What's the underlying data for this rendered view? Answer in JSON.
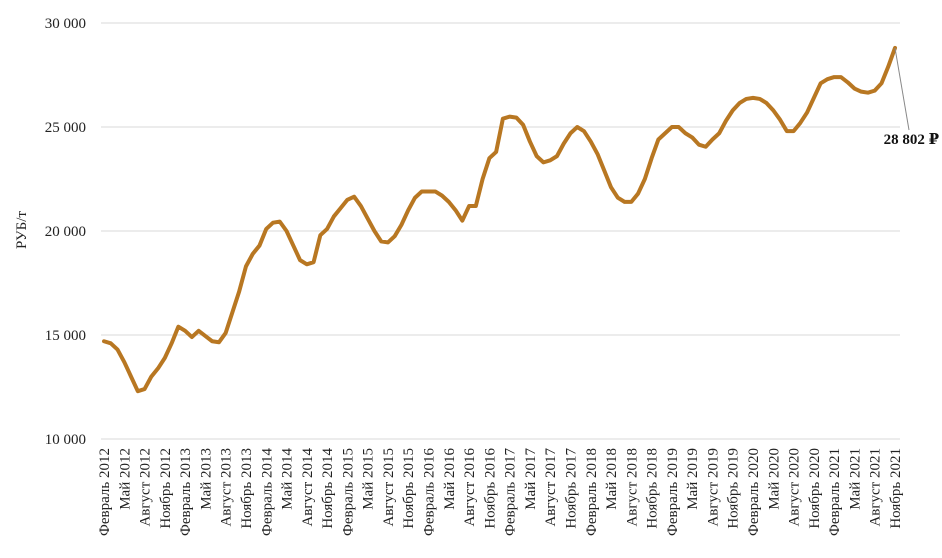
{
  "chart_data": {
    "type": "line",
    "title": "",
    "xlabel": "",
    "ylabel": "РУБ/т",
    "ylim": [
      10000,
      30000
    ],
    "y_ticks": [
      10000,
      15000,
      20000,
      25000,
      30000
    ],
    "y_tick_labels": [
      "10 000",
      "15 000",
      "20 000",
      "25 000",
      "30 000"
    ],
    "grid": true,
    "legend": "none",
    "x_tick_labels": [
      "Февраль 2012",
      "Май 2012",
      "Август 2012",
      "Ноябрь 2012",
      "Февраль 2013",
      "Май 2013",
      "Август 2013",
      "Ноябрь 2013",
      "Февраль 2014",
      "Май 2014",
      "Август 2014",
      "Ноябрь 2014",
      "Февраль 2015",
      "Май 2015",
      "Август 2015",
      "Ноябрь 2015",
      "Февраль 2016",
      "Май 2016",
      "Август 2016",
      "Ноябрь 2016",
      "Февраль 2017",
      "Май 2017",
      "Август 2017",
      "Ноябрь 2017",
      "Февраль 2018",
      "Май 2018",
      "Август 2018",
      "Ноябрь 2018",
      "Февраль 2019",
      "Май 2019",
      "Август 2019",
      "Ноябрь 2019",
      "Февраль 2020",
      "Май 2020",
      "Август 2020",
      "Ноябрь 2020",
      "Февраль 2021",
      "Май 2021",
      "Август 2021",
      "Ноябрь 2021"
    ],
    "x_start": "Февраль 2012",
    "x_end": "Декабрь 2021",
    "series": [
      {
        "color": "#b87722",
        "values": [
          14700,
          14600,
          14300,
          13700,
          13000,
          12300,
          12400,
          13000,
          13400,
          13900,
          14600,
          15400,
          15200,
          14900,
          15200,
          14950,
          14700,
          14650,
          15100,
          16100,
          17100,
          18300,
          18900,
          19300,
          20100,
          20400,
          20450,
          20000,
          19300,
          18600,
          18400,
          18500,
          19800,
          20100,
          20700,
          21100,
          21500,
          21650,
          21200,
          20600,
          20000,
          19500,
          19450,
          19750,
          20300,
          21000,
          21600,
          21900,
          21900,
          21900,
          21700,
          21400,
          21000,
          20500,
          21200,
          21200,
          22500,
          23500,
          23800,
          25400,
          25500,
          25450,
          25100,
          24300,
          23600,
          23300,
          23400,
          23600,
          24200,
          24700,
          25000,
          24800,
          24300,
          23700,
          22900,
          22100,
          21600,
          21400,
          21400,
          21800,
          22500,
          23500,
          24400,
          24700,
          25000,
          25000,
          24700,
          24500,
          24150,
          24050,
          24400,
          24700,
          25300,
          25800,
          26150,
          26350,
          26400,
          26350,
          26150,
          25800,
          25350,
          24800,
          24800,
          25200,
          25700,
          26400,
          27100,
          27300,
          27400,
          27400,
          27150,
          26850,
          26700,
          26650,
          26750,
          27100,
          27900,
          28802
        ]
      }
    ],
    "annotations": [
      {
        "text": "28 802 ₽"
      }
    ]
  }
}
